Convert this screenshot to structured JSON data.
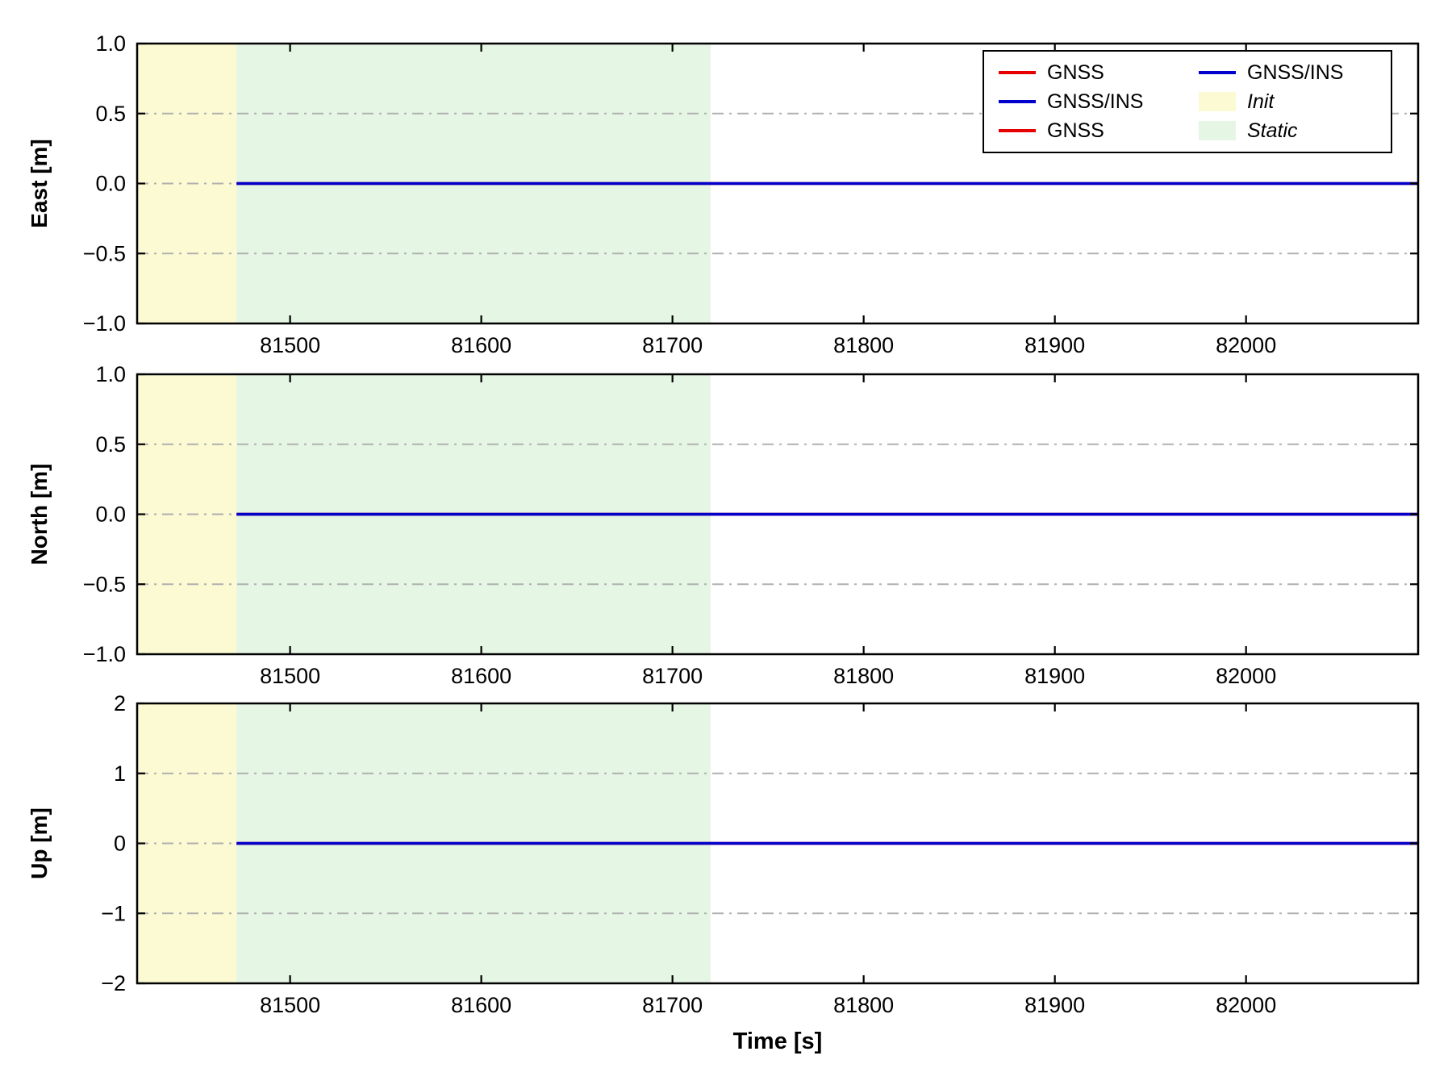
{
  "figure": {
    "background": "#ffffff",
    "xlabel": "Time [s]"
  },
  "colors": {
    "gnss": "#e60000",
    "gnss_ins": "#0000cd",
    "init_region": "#fbfad2",
    "static_region": "#e5f6e5",
    "grid": "#b0b0b0",
    "frame": "#000000"
  },
  "legend": {
    "columns": [
      {
        "entries": [
          {
            "swatch": "line",
            "color": "#e60000",
            "label": "GNSS",
            "italic": false
          },
          {
            "swatch": "line",
            "color": "#0000cd",
            "label": "GNSS/INS",
            "italic": false
          },
          {
            "swatch": "line",
            "color": "#e60000",
            "label": "GNSS",
            "italic": false
          }
        ]
      },
      {
        "entries": [
          {
            "swatch": "line",
            "color": "#0000cd",
            "label": "GNSS/INS",
            "italic": false
          },
          {
            "swatch": "patch",
            "color": "#fbfad2",
            "label": "Init",
            "italic": true
          },
          {
            "swatch": "patch",
            "color": "#e5f6e5",
            "label": "Static",
            "italic": true
          }
        ]
      }
    ]
  },
  "chart_data": [
    {
      "type": "line",
      "title": "",
      "ylabel": "East [m]",
      "xlabel": "",
      "xlim": [
        81420,
        82090
      ],
      "ylim": [
        -1.0,
        1.0
      ],
      "xticks": [
        81500,
        81600,
        81700,
        81800,
        81900,
        82000
      ],
      "xtick_labels": [
        "81500",
        "81600",
        "81700",
        "81800",
        "81900",
        "82000"
      ],
      "yticks": [
        -1.0,
        -0.5,
        0.0,
        0.5,
        1.0
      ],
      "ytick_labels": [
        "−1.0",
        "−0.5",
        "0.0",
        "0.5",
        "1.0"
      ],
      "grid_y": [
        -0.5,
        0.0,
        0.5
      ],
      "grid_style": "dash-dot",
      "show_x_tick_labels": true,
      "regions": [
        {
          "label": "Init",
          "x0": 81420,
          "x1": 81472,
          "color": "#fbfad2"
        },
        {
          "label": "Static",
          "x0": 81472,
          "x1": 81720,
          "color": "#e5f6e5"
        }
      ],
      "series": [
        {
          "name": "GNSS",
          "color": "#e60000",
          "x": [
            81472,
            82090
          ],
          "y": [
            0,
            0
          ]
        },
        {
          "name": "GNSS/INS",
          "color": "#0000cd",
          "x": [
            81472,
            82090
          ],
          "y": [
            0,
            0
          ]
        }
      ]
    },
    {
      "type": "line",
      "title": "",
      "ylabel": "North [m]",
      "xlabel": "",
      "xlim": [
        81420,
        82090
      ],
      "ylim": [
        -1.0,
        1.0
      ],
      "xticks": [
        81500,
        81600,
        81700,
        81800,
        81900,
        82000
      ],
      "xtick_labels": [
        "81500",
        "81600",
        "81700",
        "81800",
        "81900",
        "82000"
      ],
      "yticks": [
        -1.0,
        -0.5,
        0.0,
        0.5,
        1.0
      ],
      "ytick_labels": [
        "−1.0",
        "−0.5",
        "0.0",
        "0.5",
        "1.0"
      ],
      "grid_y": [
        -0.5,
        0.0,
        0.5
      ],
      "grid_style": "dash-dot",
      "show_x_tick_labels": true,
      "regions": [
        {
          "label": "Init",
          "x0": 81420,
          "x1": 81472,
          "color": "#fbfad2"
        },
        {
          "label": "Static",
          "x0": 81472,
          "x1": 81720,
          "color": "#e5f6e5"
        }
      ],
      "series": [
        {
          "name": "GNSS",
          "color": "#e60000",
          "x": [
            81472,
            82090
          ],
          "y": [
            0,
            0
          ]
        },
        {
          "name": "GNSS/INS",
          "color": "#0000cd",
          "x": [
            81472,
            82090
          ],
          "y": [
            0,
            0
          ]
        }
      ]
    },
    {
      "type": "line",
      "title": "",
      "ylabel": "Up [m]",
      "xlabel": "Time [s]",
      "xlim": [
        81420,
        82090
      ],
      "ylim": [
        -2,
        2
      ],
      "xticks": [
        81500,
        81600,
        81700,
        81800,
        81900,
        82000
      ],
      "xtick_labels": [
        "81500",
        "81600",
        "81700",
        "81800",
        "81900",
        "82000"
      ],
      "yticks": [
        -2,
        -1,
        0,
        1,
        2
      ],
      "ytick_labels": [
        "−2",
        "−1",
        "0",
        "1",
        "2"
      ],
      "grid_y": [
        -1,
        0,
        1
      ],
      "grid_style": "dash-dot",
      "show_x_tick_labels": true,
      "regions": [
        {
          "label": "Init",
          "x0": 81420,
          "x1": 81472,
          "color": "#fbfad2"
        },
        {
          "label": "Static",
          "x0": 81472,
          "x1": 81720,
          "color": "#e5f6e5"
        }
      ],
      "series": [
        {
          "name": "GNSS",
          "color": "#e60000",
          "x": [
            81472,
            82090
          ],
          "y": [
            0,
            0
          ]
        },
        {
          "name": "GNSS/INS",
          "color": "#0000cd",
          "x": [
            81472,
            82090
          ],
          "y": [
            0,
            0
          ]
        }
      ]
    }
  ]
}
